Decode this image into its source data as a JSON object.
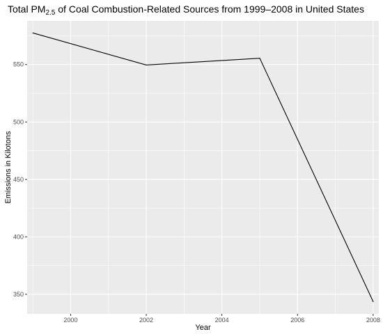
{
  "chart_data": {
    "type": "line",
    "title": {
      "prefix": "Total PM",
      "subscript": "2.5",
      "suffix": " of Coal Combustion-Related Sources from 1999–2008 in United States"
    },
    "xlabel": "Year",
    "ylabel": "Emissions in Kilotons",
    "x": [
      1999,
      2002,
      2005,
      2008
    ],
    "y": [
      577.5,
      549.6,
      555.5,
      343.6
    ],
    "xlim": [
      1998.85,
      2008.15
    ],
    "ylim": [
      333.0,
      588.0
    ],
    "x_ticks": [
      2000,
      2002,
      2004,
      2006,
      2008
    ],
    "x_tick_labels": [
      "2000",
      "2002",
      "2004",
      "2006",
      "2008"
    ],
    "y_ticks": [
      350,
      400,
      450,
      500,
      550
    ],
    "y_tick_labels": [
      "350",
      "400",
      "450",
      "500",
      "550"
    ],
    "grid": true,
    "line_color": "#000000",
    "panel_color": "#ebebeb",
    "grid_color": "#ffffff"
  }
}
